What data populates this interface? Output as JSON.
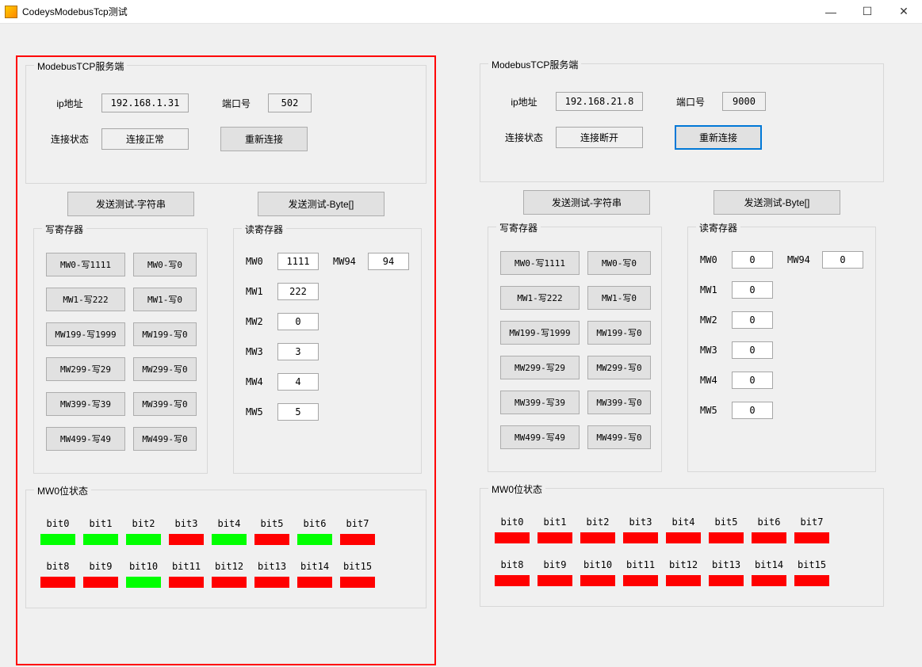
{
  "window": {
    "title": "CodeysModebusTcp测试",
    "min": "—",
    "max": "☐",
    "close": "✕"
  },
  "left": {
    "server": {
      "title": "ModebusTCP服务端",
      "ip_label": "ip地址",
      "ip_value": "192.168.1.31",
      "port_label": "端口号",
      "port_value": "502",
      "status_label": "连接状态",
      "status_value": "连接正常",
      "reconnect": "重新连接"
    },
    "send_str": "发送测试-字符串",
    "send_byte": "发送测试-Byte[]",
    "write": {
      "title": "写寄存器",
      "rows": [
        {
          "a": "MW0-写1111",
          "b": "MW0-写0"
        },
        {
          "a": "MW1-写222",
          "b": "MW1-写0"
        },
        {
          "a": "MW199-写1999",
          "b": "MW199-写0"
        },
        {
          "a": "MW299-写29",
          "b": "MW299-写0"
        },
        {
          "a": "MW399-写39",
          "b": "MW399-写0"
        },
        {
          "a": "MW499-写49",
          "b": "MW499-写0"
        }
      ]
    },
    "read": {
      "title": "读寄存器",
      "mw0_l": "MW0",
      "mw0_v": "1111",
      "mw94_l": "MW94",
      "mw94_v": "94",
      "mw1_l": "MW1",
      "mw1_v": "222",
      "mw2_l": "MW2",
      "mw2_v": "0",
      "mw3_l": "MW3",
      "mw3_v": "3",
      "mw4_l": "MW4",
      "mw4_v": "4",
      "mw5_l": "MW5",
      "mw5_v": "5"
    },
    "bits": {
      "title": "MW0位状态",
      "labels": [
        "bit0",
        "bit1",
        "bit2",
        "bit3",
        "bit4",
        "bit5",
        "bit6",
        "bit7",
        "bit8",
        "bit9",
        "bit10",
        "bit11",
        "bit12",
        "bit13",
        "bit14",
        "bit15"
      ],
      "states": [
        1,
        1,
        1,
        0,
        1,
        0,
        1,
        0,
        0,
        0,
        1,
        0,
        0,
        0,
        0,
        0
      ]
    }
  },
  "right": {
    "server": {
      "title": "ModebusTCP服务端",
      "ip_label": "ip地址",
      "ip_value": "192.168.21.8",
      "port_label": "端口号",
      "port_value": "9000",
      "status_label": "连接状态",
      "status_value": "连接断开",
      "reconnect": "重新连接"
    },
    "send_str": "发送测试-字符串",
    "send_byte": "发送测试-Byte[]",
    "write": {
      "title": "写寄存器",
      "rows": [
        {
          "a": "MW0-写1111",
          "b": "MW0-写0"
        },
        {
          "a": "MW1-写222",
          "b": "MW1-写0"
        },
        {
          "a": "MW199-写1999",
          "b": "MW199-写0"
        },
        {
          "a": "MW299-写29",
          "b": "MW299-写0"
        },
        {
          "a": "MW399-写39",
          "b": "MW399-写0"
        },
        {
          "a": "MW499-写49",
          "b": "MW499-写0"
        }
      ]
    },
    "read": {
      "title": "读寄存器",
      "mw0_l": "MW0",
      "mw0_v": "0",
      "mw94_l": "MW94",
      "mw94_v": "0",
      "mw1_l": "MW1",
      "mw1_v": "0",
      "mw2_l": "MW2",
      "mw2_v": "0",
      "mw3_l": "MW3",
      "mw3_v": "0",
      "mw4_l": "MW4",
      "mw4_v": "0",
      "mw5_l": "MW5",
      "mw5_v": "0"
    },
    "bits": {
      "title": "MW0位状态",
      "labels": [
        "bit0",
        "bit1",
        "bit2",
        "bit3",
        "bit4",
        "bit5",
        "bit6",
        "bit7",
        "bit8",
        "bit9",
        "bit10",
        "bit11",
        "bit12",
        "bit13",
        "bit14",
        "bit15"
      ],
      "states": [
        0,
        0,
        0,
        0,
        0,
        0,
        0,
        0,
        0,
        0,
        0,
        0,
        0,
        0,
        0,
        0
      ]
    }
  },
  "colors": {
    "on": "#00ff00",
    "off": "#ff0000",
    "highlight": "#ff0000"
  }
}
